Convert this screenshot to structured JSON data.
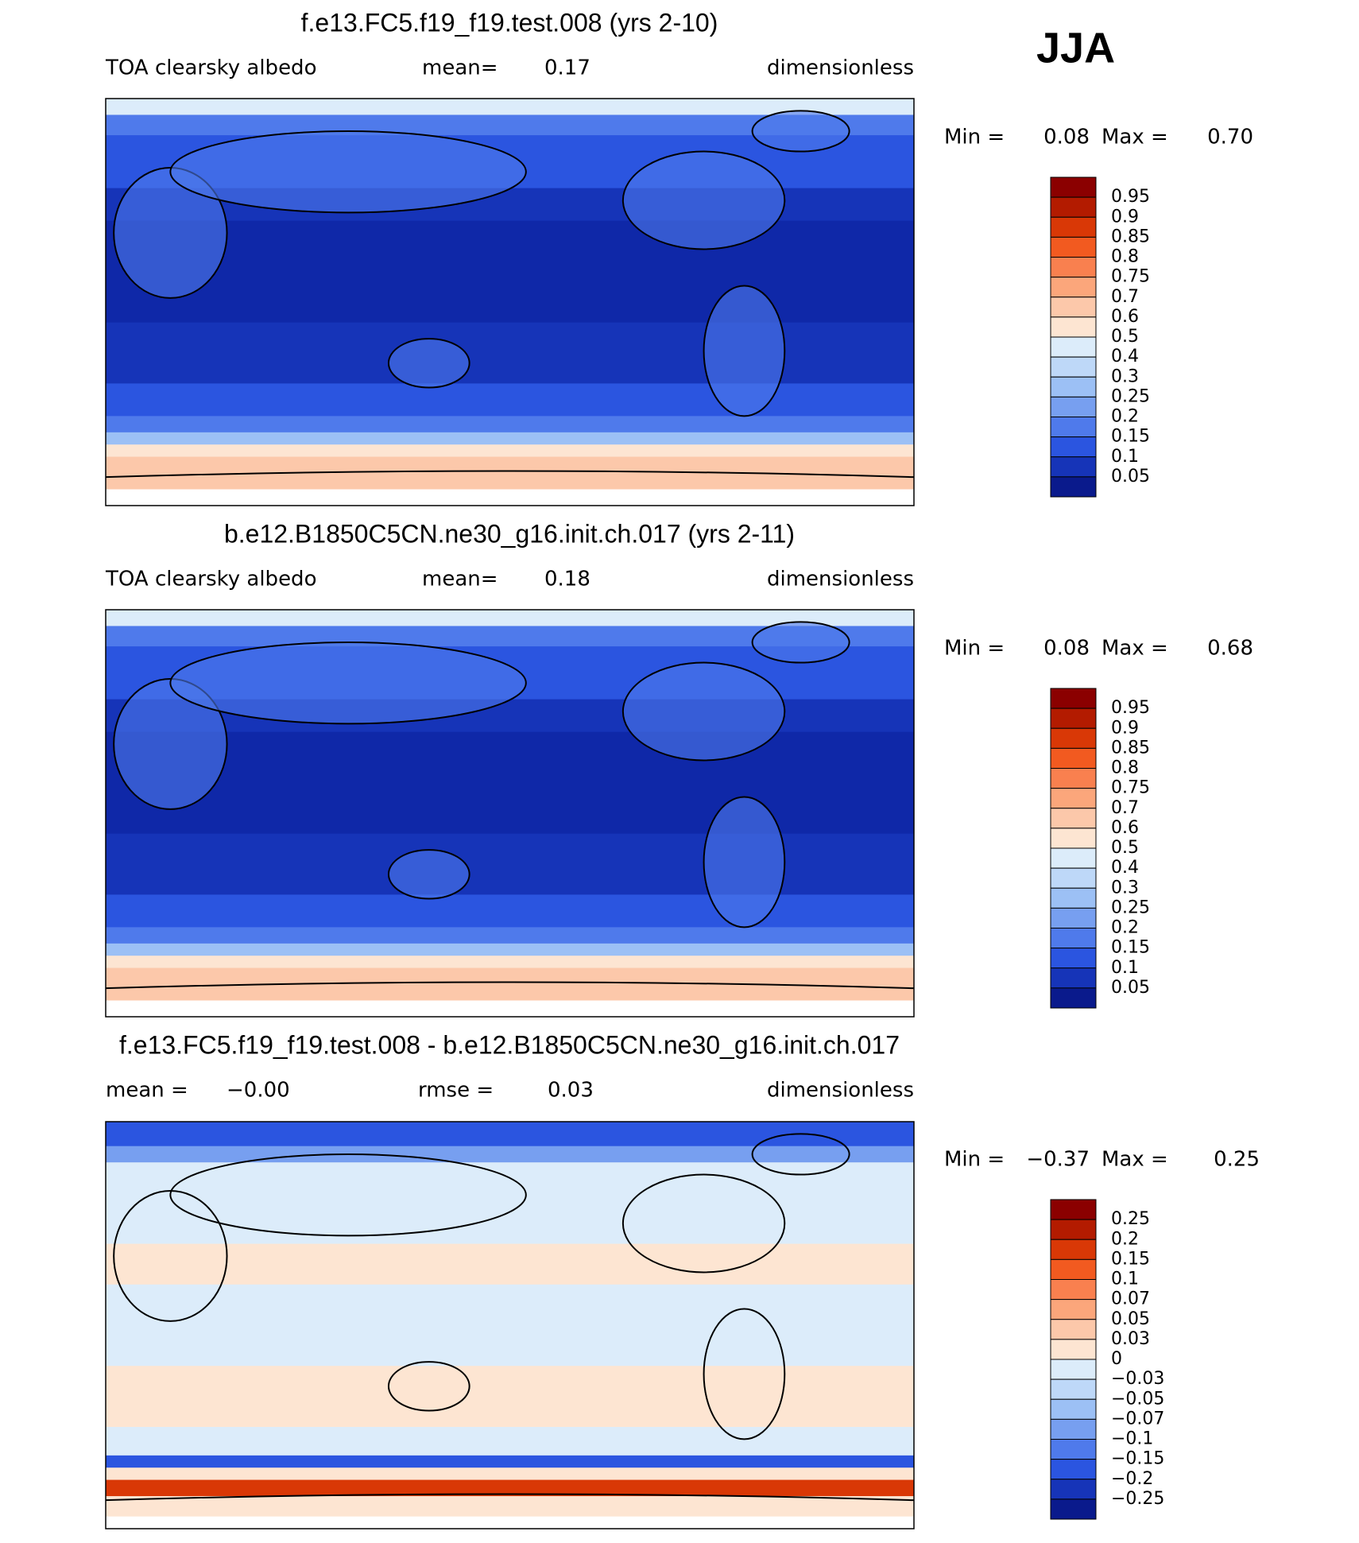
{
  "label": "JJA",
  "panels": [
    {
      "title": "f.e13.FC5.f19_f19.test.008 (yrs 2-10)",
      "left_label": "TOA clearsky albedo",
      "stat_label": "mean=",
      "stat_value": "0.17",
      "units": "dimensionless",
      "min_label": "Min =",
      "min_value": "0.08",
      "max_label": "Max =",
      "max_value": "0.70",
      "colorbar": [
        "0.95",
        "0.9",
        "0.85",
        "0.8",
        "0.75",
        "0.7",
        "0.6",
        "0.5",
        "0.4",
        "0.3",
        "0.25",
        "0.2",
        "0.15",
        "0.1",
        "0.05"
      ]
    },
    {
      "title": "b.e12.B1850C5CN.ne30_g16.init.ch.017 (yrs 2-11)",
      "left_label": "TOA clearsky albedo",
      "stat_label": "mean=",
      "stat_value": "0.18",
      "units": "dimensionless",
      "min_label": "Min =",
      "min_value": "0.08",
      "max_label": "Max =",
      "max_value": "0.68",
      "colorbar": [
        "0.95",
        "0.9",
        "0.85",
        "0.8",
        "0.75",
        "0.7",
        "0.6",
        "0.5",
        "0.4",
        "0.3",
        "0.25",
        "0.2",
        "0.15",
        "0.1",
        "0.05"
      ]
    },
    {
      "title": "f.e13.FC5.f19_f19.test.008 - b.e12.B1850C5CN.ne30_g16.init.ch.017",
      "left_label": "mean =",
      "left_value": "−0.00",
      "stat_label": "rmse =",
      "stat_value": "0.03",
      "units": "dimensionless",
      "min_label": "Min =",
      "min_value": "−0.37",
      "max_label": "Max =",
      "max_value": "0.25",
      "colorbar": [
        "0.25",
        "0.2",
        "0.15",
        "0.1",
        "0.07",
        "0.05",
        "0.03",
        "0",
        "−0.03",
        "−0.05",
        "−0.07",
        "−0.1",
        "−0.15",
        "−0.2",
        "−0.25"
      ]
    }
  ],
  "colorbar_colors": [
    "#8b0000",
    "#b31b00",
    "#d93806",
    "#f25a20",
    "#f9804f",
    "#fba67b",
    "#fcc8aa",
    "#fde5d2",
    "#dcecfa",
    "#bed8f8",
    "#9cc0f5",
    "#779ff0",
    "#4f7aeb",
    "#2b55e0",
    "#1634b8",
    "#0a1a8c"
  ]
}
